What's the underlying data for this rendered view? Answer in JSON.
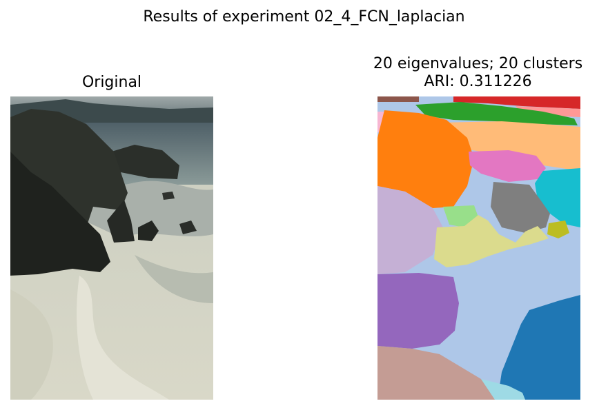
{
  "figure": {
    "suptitle": "Results of experiment 02_4_FCN_laplacian"
  },
  "left": {
    "title": "Original",
    "image_description": "photo"
  },
  "right": {
    "title_line1": "20 eigenvalues; 20 clusters",
    "title_line2": "ARI: 0.311226",
    "num_clusters": 20
  },
  "colors": {
    "c1": "#1f77b4",
    "c2": "#aec7e8",
    "c3": "#ff7f0e",
    "c4": "#ffbb78",
    "c5": "#2ca02c",
    "c6": "#98df8a",
    "c7": "#d62728",
    "c8": "#ff9896",
    "c9": "#9467bd",
    "c10": "#c5b0d5",
    "c11": "#8c564b",
    "c12": "#c49c94",
    "c13": "#e377c2",
    "c14": "#f7b6d2",
    "c15": "#7f7f7f",
    "c16": "#c7c7c7",
    "c17": "#bcbd22",
    "c18": "#dbdb8d",
    "c19": "#17becf",
    "c20": "#9edae5"
  }
}
